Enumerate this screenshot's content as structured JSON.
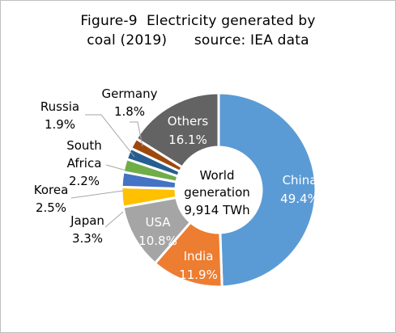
{
  "title": {
    "line1": "Figure-9  Electricity generated by",
    "line2": "coal (2019)      source: IEA data"
  },
  "center": {
    "line1": "World",
    "line2": "generation",
    "line3": "9,914 TWh"
  },
  "chart_data": {
    "type": "pie",
    "title": "Figure-9  Electricity generated by coal (2019)      source: IEA data",
    "center_label": "World generation 9,914 TWh",
    "slices": [
      {
        "label": "China",
        "value": 49.4,
        "value_label": "49.4%",
        "color": "#5b9bd5"
      },
      {
        "label": "India",
        "value": 11.9,
        "value_label": "11.9%",
        "color": "#ed7d31"
      },
      {
        "label": "USA",
        "value": 10.8,
        "value_label": "10.8%",
        "color": "#a5a5a5"
      },
      {
        "label": "Japan",
        "value": 3.3,
        "value_label": "3.3%",
        "color": "#ffc000"
      },
      {
        "label": "Korea",
        "value": 2.5,
        "value_label": "2.5%",
        "color": "#4472c4"
      },
      {
        "label": "South Africa",
        "value": 2.2,
        "value_label": "2.2%",
        "color": "#70ad47"
      },
      {
        "label": "Russia",
        "value": 1.9,
        "value_label": "1.9%",
        "color": "#255e91"
      },
      {
        "label": "Germany",
        "value": 1.8,
        "value_label": "1.8%",
        "color": "#9e480e"
      },
      {
        "label": "Others",
        "value": 16.1,
        "value_label": "16.1%",
        "color": "#636363"
      }
    ]
  }
}
